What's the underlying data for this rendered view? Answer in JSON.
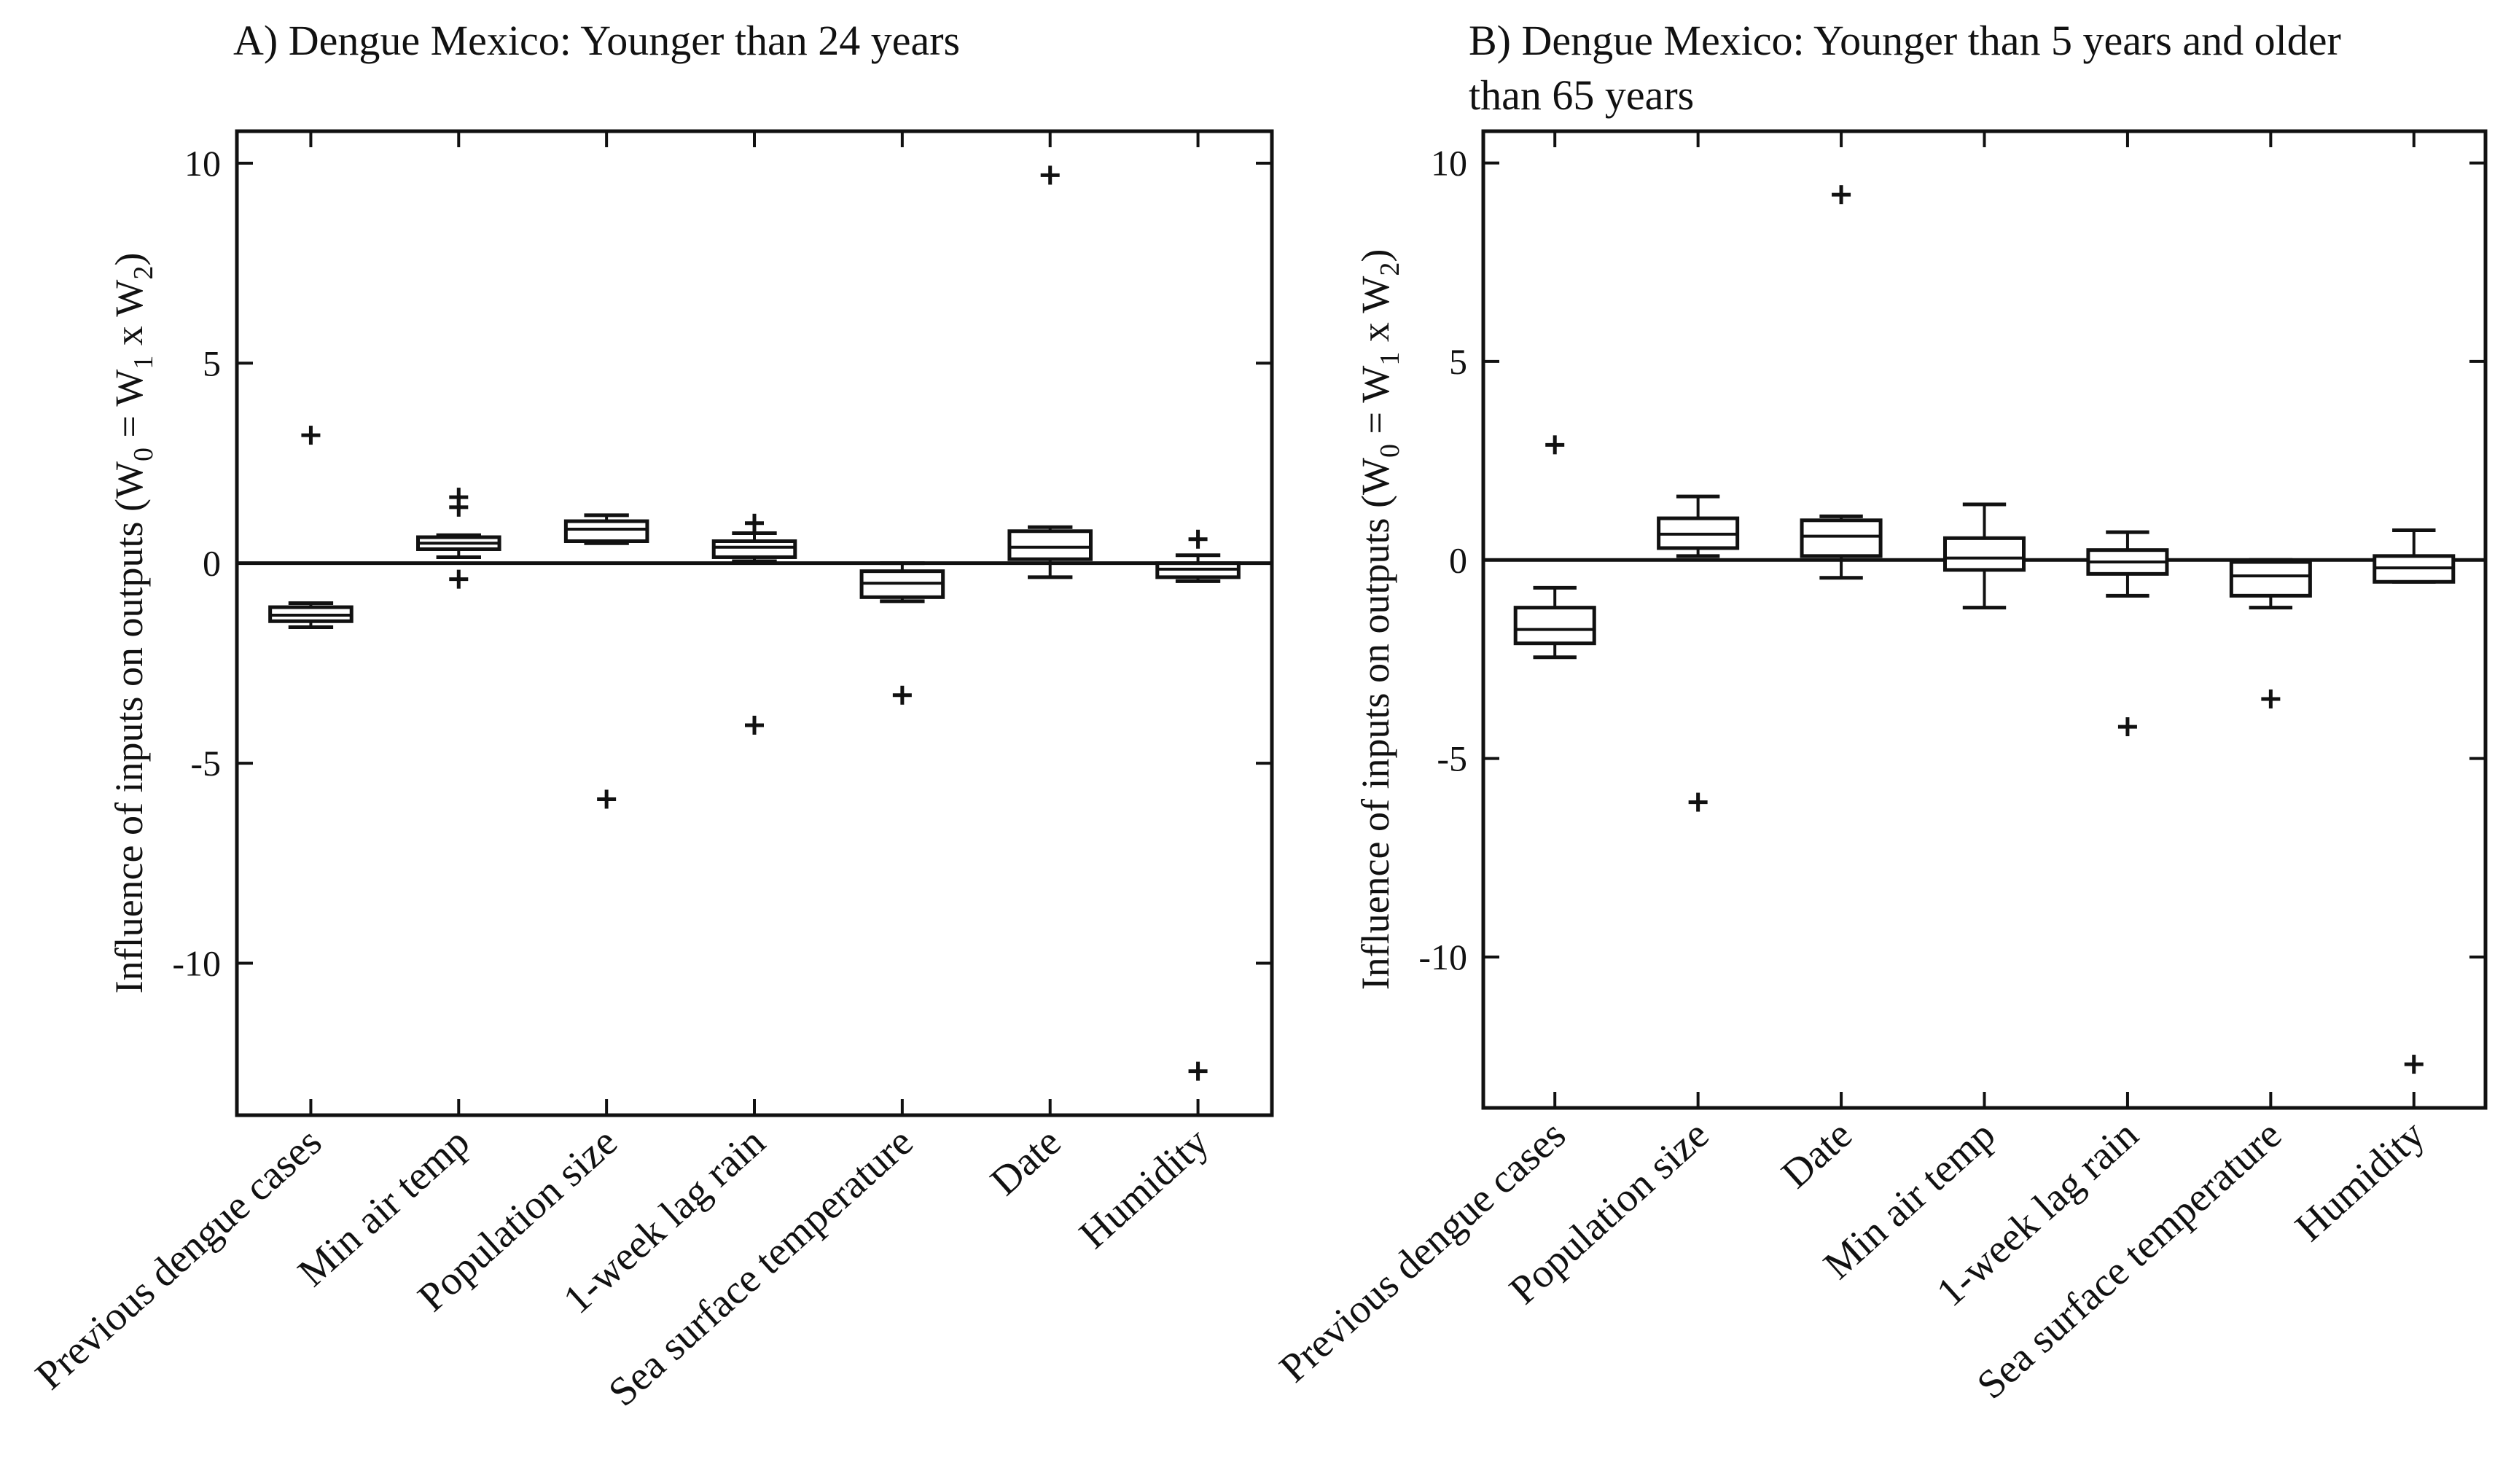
{
  "chart_data": [
    {
      "type": "box",
      "title": "A) Dengue Mexico: Younger than 24 years",
      "title_lines": [
        "A) Dengue Mexico: Younger than 24 years"
      ],
      "ylabel": "Influence of inputs on outputs (W0 = W1 x W2)",
      "ylabel_parts": {
        "pre": "Influence of inputs on outputs (W",
        "s0": "0",
        "eq": " = W",
        "s1": "1",
        "x": " x W",
        "s2": "2",
        "post": ")"
      },
      "ylim": [
        -13.8,
        10.8
      ],
      "yticks": [
        10,
        5,
        0,
        -5,
        -10
      ],
      "ytick_labels": [
        "10",
        "5",
        "0",
        "-5",
        "-10"
      ],
      "categories": [
        "Previous dengue cases",
        "Min air temp",
        "Population size",
        "1-week lag rain",
        "Sea surface temperature",
        "Date",
        "Humidity"
      ],
      "boxes": [
        {
          "q1": -1.45,
          "median": -1.3,
          "q3": -1.1,
          "whisker_low": -1.6,
          "whisker_high": -1.0,
          "outliers": [
            3.2
          ]
        },
        {
          "q1": 0.35,
          "median": 0.5,
          "q3": 0.65,
          "whisker_low": 0.15,
          "whisker_high": 0.7,
          "outliers": [
            1.65,
            1.4,
            -0.4
          ]
        },
        {
          "q1": 0.55,
          "median": 0.85,
          "q3": 1.05,
          "whisker_low": 0.5,
          "whisker_high": 1.2,
          "outliers": [
            -5.9
          ]
        },
        {
          "q1": 0.15,
          "median": 0.4,
          "q3": 0.55,
          "whisker_low": 0.05,
          "whisker_high": 0.75,
          "outliers": [
            1.0,
            -4.05
          ]
        },
        {
          "q1": -0.85,
          "median": -0.5,
          "q3": -0.2,
          "whisker_low": -0.95,
          "whisker_high": 0.0,
          "outliers": [
            -3.3
          ]
        },
        {
          "q1": 0.1,
          "median": 0.4,
          "q3": 0.8,
          "whisker_low": -0.35,
          "whisker_high": 0.9,
          "outliers": [
            9.7
          ]
        },
        {
          "q1": -0.35,
          "median": -0.15,
          "q3": 0.0,
          "whisker_low": -0.45,
          "whisker_high": 0.2,
          "outliers": [
            0.6,
            -12.7
          ]
        }
      ],
      "zero_line": 0
    },
    {
      "type": "box",
      "title": "B) Dengue Mexico: Younger than 5 years and older than 65 years",
      "title_lines": [
        "B) Dengue Mexico: Younger than 5 years and older",
        "than 65 years"
      ],
      "ylabel": "Influence of inputs on outputs (W0 = W1 x W2)",
      "ylabel_parts": {
        "pre": "Influence of inputs on outputs (W",
        "s0": "0",
        "eq": " = W",
        "s1": "1",
        "x": " x W",
        "s2": "2",
        "post": ")"
      },
      "ylim": [
        -13.8,
        10.8
      ],
      "yticks": [
        10,
        5,
        0,
        -5,
        -10
      ],
      "ytick_labels": [
        "10",
        "5",
        "0",
        "-5",
        "-10"
      ],
      "categories": [
        "Previous dengue cases",
        "Population size",
        "Date",
        "Min air temp",
        "1-week lag rain",
        "Sea surface temperature",
        "Humidity"
      ],
      "boxes": [
        {
          "q1": -2.1,
          "median": -1.75,
          "q3": -1.2,
          "whisker_low": -2.45,
          "whisker_high": -0.7,
          "outliers": [
            2.9
          ]
        },
        {
          "q1": 0.3,
          "median": 0.65,
          "q3": 1.05,
          "whisker_low": 0.1,
          "whisker_high": 1.6,
          "outliers": [
            -6.1
          ]
        },
        {
          "q1": 0.1,
          "median": 0.6,
          "q3": 1.0,
          "whisker_low": -0.45,
          "whisker_high": 1.1,
          "outliers": [
            9.2
          ]
        },
        {
          "q1": -0.25,
          "median": 0.05,
          "q3": 0.55,
          "whisker_low": -1.2,
          "whisker_high": 1.4,
          "outliers": []
        },
        {
          "q1": -0.35,
          "median": -0.05,
          "q3": 0.25,
          "whisker_low": -0.9,
          "whisker_high": 0.7,
          "outliers": [
            -4.2
          ]
        },
        {
          "q1": -0.9,
          "median": -0.4,
          "q3": -0.05,
          "whisker_low": -1.2,
          "whisker_high": 0.0,
          "outliers": [
            -3.5
          ]
        },
        {
          "q1": -0.55,
          "median": -0.2,
          "q3": 0.1,
          "whisker_low": -0.55,
          "whisker_high": 0.75,
          "outliers": [
            -12.7
          ]
        }
      ],
      "zero_line": 0
    }
  ]
}
